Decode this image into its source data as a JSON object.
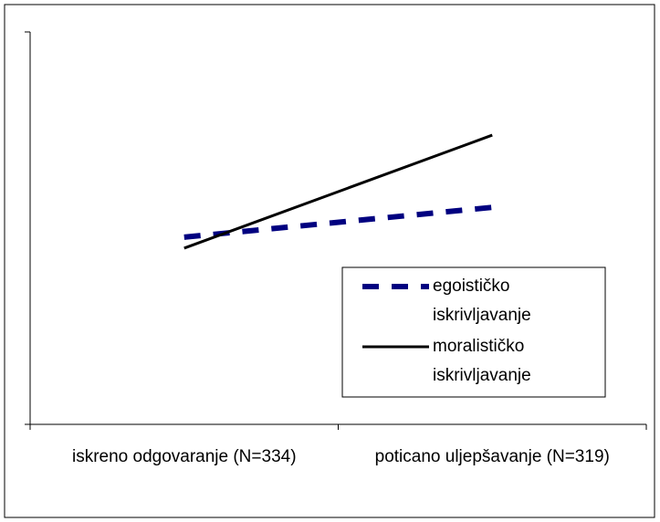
{
  "chart_data": {
    "type": "line",
    "categories": [
      "iskreno odgovaranje (N=334)",
      "poticano uljepšavanje (N=319)"
    ],
    "series": [
      {
        "name": "egoističko iskrivljavanje",
        "color": "#000080",
        "style": "dashed",
        "values": [
          47.7,
          55.3
        ]
      },
      {
        "name": "moralističko iskrivljavanje",
        "color": "#000000",
        "style": "solid",
        "values": [
          44.9,
          73.7
        ]
      }
    ],
    "ylim": [
      0,
      100
    ],
    "legend": "lower right",
    "grid": false
  }
}
